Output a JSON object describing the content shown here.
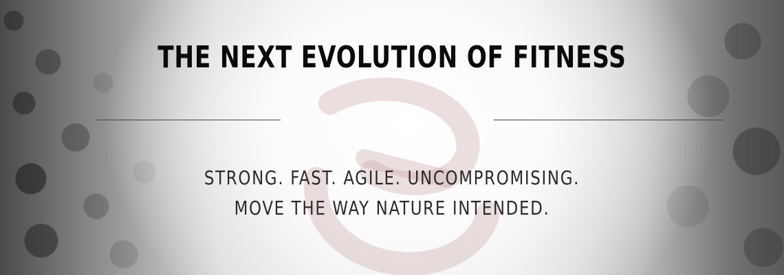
{
  "hero": {
    "headline": "THE NEXT EVOLUTION OF FITNESS",
    "tagline_line1": "STRONG. FAST. AGILE. UNCOMPROMISING.",
    "tagline_line2": "MOVE THE WAY NATURE INTENDED.",
    "watermark_icon": "swirl-logo-icon",
    "colors": {
      "text": "#0a0a0a",
      "subtext": "#2a2a2a",
      "divider": "#444444",
      "watermark": "#c9a3a3"
    }
  }
}
